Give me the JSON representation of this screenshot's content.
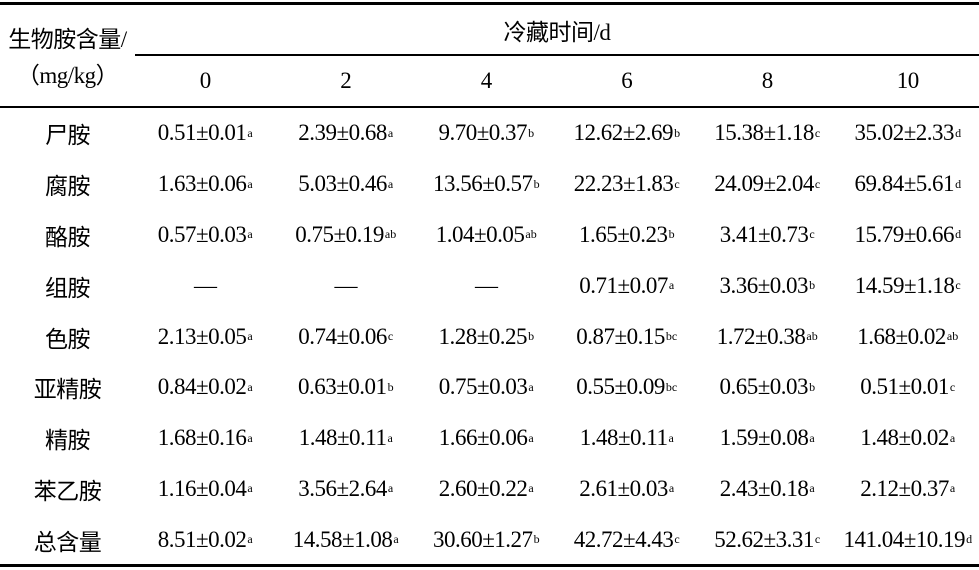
{
  "header": {
    "row_label": [
      "生物胺含量/",
      "（mg/kg）"
    ],
    "group": "冷藏时间/d",
    "columns": [
      "0",
      "2",
      "4",
      "6",
      "8",
      "10"
    ]
  },
  "rows": [
    {
      "name": "尸胺",
      "cells": [
        {
          "text": "0.51±0.01",
          "sup": "a"
        },
        {
          "text": "2.39±0.68",
          "sup": "a"
        },
        {
          "text": "9.70±0.37",
          "sup": "b"
        },
        {
          "text": "12.62±2.69",
          "sup": "b"
        },
        {
          "text": "15.38±1.18",
          "sup": "c"
        },
        {
          "text": "35.02±2.33",
          "sup": "d"
        }
      ]
    },
    {
      "name": "腐胺",
      "cells": [
        {
          "text": "1.63±0.06",
          "sup": "a"
        },
        {
          "text": "5.03±0.46",
          "sup": "a"
        },
        {
          "text": "13.56±0.57",
          "sup": "b"
        },
        {
          "text": "22.23±1.83",
          "sup": "c"
        },
        {
          "text": "24.09±2.04",
          "sup": "c"
        },
        {
          "text": "69.84±5.61",
          "sup": "d"
        }
      ]
    },
    {
      "name": "酪胺",
      "cells": [
        {
          "text": "0.57±0.03",
          "sup": "a"
        },
        {
          "text": "0.75±0.19",
          "sup": "ab"
        },
        {
          "text": "1.04±0.05",
          "sup": "ab"
        },
        {
          "text": "1.65±0.23",
          "sup": "b"
        },
        {
          "text": "3.41±0.73",
          "sup": "c"
        },
        {
          "text": "15.79±0.66",
          "sup": "d"
        }
      ]
    },
    {
      "name": "组胺",
      "cells": [
        {
          "text": "—"
        },
        {
          "text": "—"
        },
        {
          "text": "—"
        },
        {
          "text": "0.71±0.07",
          "sup": "a"
        },
        {
          "text": "3.36±0.03",
          "sup": "b"
        },
        {
          "text": "14.59±1.18",
          "sup": "c"
        }
      ]
    },
    {
      "name": "色胺",
      "cells": [
        {
          "text": "2.13±0.05",
          "sup": "a"
        },
        {
          "text": "0.74±0.06",
          "sup": "c"
        },
        {
          "text": "1.28±0.25",
          "sup": "b"
        },
        {
          "text": "0.87±0.15",
          "sup": "bc"
        },
        {
          "text": "1.72±0.38",
          "sup": "ab"
        },
        {
          "text": "1.68±0.02",
          "sup": "ab"
        }
      ]
    },
    {
      "name": "亚精胺",
      "cells": [
        {
          "text": "0.84±0.02",
          "sup": "a"
        },
        {
          "text": "0.63±0.01",
          "sup": "b"
        },
        {
          "text": "0.75±0.03",
          "sup": "a"
        },
        {
          "text": "0.55±0.09",
          "sup": "bc"
        },
        {
          "text": "0.65±0.03",
          "sup": "b"
        },
        {
          "text": "0.51±0.01",
          "sup": "c"
        }
      ]
    },
    {
      "name": "精胺",
      "cells": [
        {
          "text": "1.68±0.16",
          "sup": "a"
        },
        {
          "text": "1.48±0.11",
          "sup": "a"
        },
        {
          "text": "1.66±0.06",
          "sup": "a"
        },
        {
          "text": "1.48±0.11",
          "sup": "a"
        },
        {
          "text": "1.59±0.08",
          "sup": "a"
        },
        {
          "text": "1.48±0.02",
          "sup": "a"
        }
      ]
    },
    {
      "name": "苯乙胺",
      "cells": [
        {
          "text": "1.16±0.04",
          "sup": "a"
        },
        {
          "text": "3.56±2.64",
          "sup": "a"
        },
        {
          "text": "2.60±0.22",
          "sup": "a"
        },
        {
          "text": "2.61±0.03",
          "sup": "a"
        },
        {
          "text": "2.43±0.18",
          "sup": "a"
        },
        {
          "text": "2.12±0.37",
          "sup": "a"
        }
      ]
    },
    {
      "name": "总含量",
      "cells": [
        {
          "text": "8.51±0.02",
          "sup": "a"
        },
        {
          "text": "14.58±1.08",
          "sup": "a"
        },
        {
          "text": "30.60±1.27",
          "sup": "b"
        },
        {
          "text": "42.72±4.43",
          "sup": "c"
        },
        {
          "text": "52.62±3.31",
          "sup": "c"
        },
        {
          "text": "141.04±10.19",
          "sup": "d"
        }
      ]
    }
  ]
}
